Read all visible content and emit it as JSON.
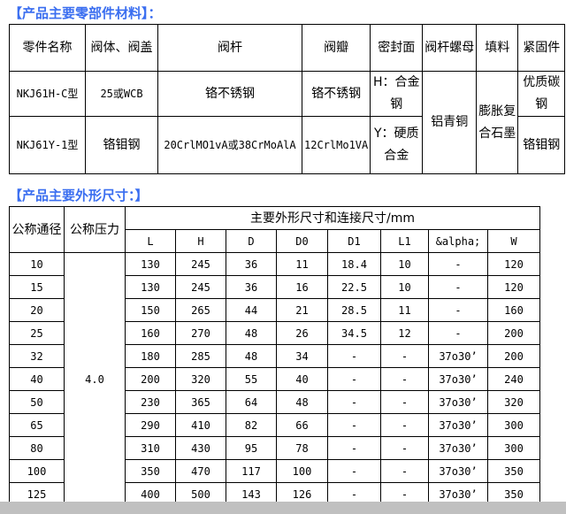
{
  "materials": {
    "title": "【产品主要零部件材料】：",
    "headers": [
      "零件名称",
      "阀体、阀盖",
      "阀杆",
      "阀瓣",
      "密封面",
      "阀杆螺母",
      "填料",
      "紧固件"
    ],
    "row1": {
      "model": "NKJ61H-C型",
      "body": "25或WCB",
      "stem": "铬不锈钢",
      "disc": "铬不锈钢",
      "seal": "H：合金钢",
      "stem_nut": "铝青铜",
      "packing": "膨胀复合石墨",
      "fastener": "优质碳钢"
    },
    "row2": {
      "model": "NKJ61Y-1型",
      "body": "铬钼钢",
      "stem": "20CrlMO1vA或38CrMoAlA",
      "disc": "12CrlMo1VA",
      "seal": "Y：硬质合金",
      "fastener": "铬钼钢"
    }
  },
  "dimensions": {
    "title": "【产品主要外形尺寸：】",
    "h_dn": "公称通径",
    "h_pn": "公称压力",
    "h_group": "主要外形尺寸和连接尺寸/mm",
    "cols": [
      "L",
      "H",
      "D",
      "D0",
      "D1",
      "L1",
      "&alpha;",
      "W"
    ],
    "pn": "4.0",
    "rows": [
      [
        "10",
        "130",
        "245",
        "36",
        "11",
        "18.4",
        "10",
        "-",
        "120"
      ],
      [
        "15",
        "130",
        "245",
        "36",
        "16",
        "22.5",
        "10",
        "-",
        "120"
      ],
      [
        "20",
        "150",
        "265",
        "44",
        "21",
        "28.5",
        "11",
        "-",
        "160"
      ],
      [
        "25",
        "160",
        "270",
        "48",
        "26",
        "34.5",
        "12",
        "-",
        "200"
      ],
      [
        "32",
        "180",
        "285",
        "48",
        "34",
        "-",
        "-",
        "37o30’",
        "200"
      ],
      [
        "40",
        "200",
        "320",
        "55",
        "40",
        "-",
        "-",
        "37o30’",
        "240"
      ],
      [
        "50",
        "230",
        "365",
        "64",
        "48",
        "-",
        "-",
        "37o30’",
        "320"
      ],
      [
        "65",
        "290",
        "410",
        "82",
        "66",
        "-",
        "-",
        "37o30’",
        "300"
      ],
      [
        "80",
        "310",
        "430",
        "95",
        "78",
        "-",
        "-",
        "37o30’",
        "300"
      ],
      [
        "100",
        "350",
        "470",
        "117",
        "100",
        "-",
        "-",
        "37o30’",
        "350"
      ],
      [
        "125",
        "400",
        "500",
        "143",
        "126",
        "-",
        "-",
        "37o30’",
        "350"
      ]
    ]
  }
}
